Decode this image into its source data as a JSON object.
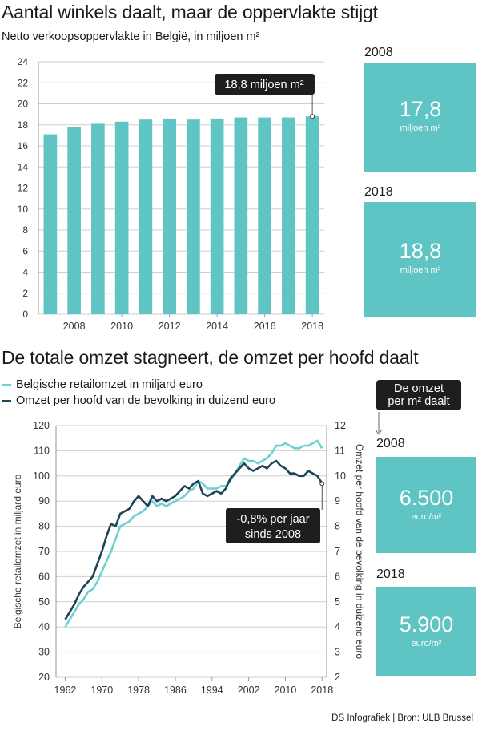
{
  "chart_data": [
    {
      "type": "bar",
      "title": "Aantal winkels daalt, maar de oppervlakte stijgt",
      "subtitle": "Netto verkoopsoppervlakte in België, in miljoen m²",
      "categories": [
        "2007",
        "2008",
        "2009",
        "2010",
        "2011",
        "2012",
        "2013",
        "2014",
        "2015",
        "2016",
        "2017",
        "2018"
      ],
      "values": [
        17.1,
        17.8,
        18.1,
        18.3,
        18.5,
        18.6,
        18.5,
        18.6,
        18.7,
        18.7,
        18.7,
        18.8
      ],
      "ylim": [
        0,
        24
      ],
      "yticks": [
        0,
        2,
        4,
        6,
        8,
        10,
        12,
        14,
        16,
        18,
        20,
        22,
        24
      ],
      "xtick_labels": [
        "2008",
        "2010",
        "2012",
        "2014",
        "2016",
        "2018"
      ],
      "annotation": "18,8 miljoen m²",
      "grid": true,
      "bar_color": "#5ec4c4"
    },
    {
      "type": "line",
      "title": "De totale omzet stagneert, de omzet per hoofd daalt",
      "ylabel": "Belgische retailomzet in miljard euro",
      "y2label": "Omzet per hoofd van de bevolking in duizend euro",
      "ylim": [
        20,
        120
      ],
      "y2lim": [
        2,
        12
      ],
      "xlim": [
        1960,
        2019
      ],
      "yticks": [
        20,
        30,
        40,
        50,
        60,
        70,
        80,
        90,
        100,
        110,
        120
      ],
      "y2ticks": [
        2,
        3,
        4,
        5,
        6,
        7,
        8,
        9,
        10,
        11,
        12
      ],
      "xtick_labels": [
        "1962",
        "1970",
        "1978",
        "1986",
        "1994",
        "2002",
        "2010",
        "2018"
      ],
      "annotation": [
        "-0,8% per jaar",
        "sinds 2008"
      ],
      "grid": true,
      "series": [
        {
          "name": "Belgische retailomzet in miljard euro",
          "axis": "left",
          "color": "#6fd0d0",
          "x": [
            1962,
            1963,
            1964,
            1965,
            1966,
            1967,
            1968,
            1969,
            1970,
            1971,
            1972,
            1973,
            1974,
            1975,
            1976,
            1977,
            1978,
            1979,
            1980,
            1981,
            1982,
            1983,
            1984,
            1985,
            1986,
            1987,
            1988,
            1989,
            1990,
            1991,
            1992,
            1993,
            1994,
            1995,
            1996,
            1997,
            1998,
            1999,
            2000,
            2001,
            2002,
            2003,
            2004,
            2005,
            2006,
            2007,
            2008,
            2009,
            2010,
            2011,
            2012,
            2013,
            2014,
            2015,
            2016,
            2017,
            2018
          ],
          "values": [
            40,
            43,
            46,
            49,
            51,
            54,
            55,
            58,
            62,
            66,
            70,
            75,
            80,
            81,
            82,
            84,
            85,
            86,
            88,
            90,
            88,
            89,
            88,
            89,
            90,
            91,
            92,
            94,
            95,
            98,
            97,
            95,
            95,
            95,
            96,
            96,
            98,
            101,
            104,
            107,
            106,
            106,
            105,
            106,
            107,
            109,
            112,
            112,
            113,
            112,
            111,
            111,
            112,
            112,
            113,
            114,
            111
          ]
        },
        {
          "name": "Omzet per hoofd van de bevolking in duizend euro",
          "axis": "right",
          "color": "#1f4456",
          "x": [
            1962,
            1963,
            1964,
            1965,
            1966,
            1967,
            1968,
            1969,
            1970,
            1971,
            1972,
            1973,
            1974,
            1975,
            1976,
            1977,
            1978,
            1979,
            1980,
            1981,
            1982,
            1983,
            1984,
            1985,
            1986,
            1987,
            1988,
            1989,
            1990,
            1991,
            1992,
            1993,
            1994,
            1995,
            1996,
            1997,
            1998,
            1999,
            2000,
            2001,
            2002,
            2003,
            2004,
            2005,
            2006,
            2007,
            2008,
            2009,
            2010,
            2011,
            2012,
            2013,
            2014,
            2015,
            2016,
            2017,
            2018
          ],
          "values": [
            4.3,
            4.6,
            4.9,
            5.3,
            5.6,
            5.8,
            6.0,
            6.5,
            7.0,
            7.6,
            8.1,
            8.0,
            8.5,
            8.6,
            8.7,
            9.0,
            9.2,
            9.0,
            8.8,
            9.2,
            9.0,
            9.1,
            9.0,
            9.1,
            9.2,
            9.4,
            9.6,
            9.5,
            9.7,
            9.8,
            9.3,
            9.2,
            9.3,
            9.4,
            9.3,
            9.5,
            9.9,
            10.1,
            10.3,
            10.5,
            10.3,
            10.2,
            10.3,
            10.4,
            10.3,
            10.5,
            10.6,
            10.4,
            10.3,
            10.1,
            10.1,
            10.0,
            10.0,
            10.2,
            10.1,
            10.0,
            9.7
          ]
        }
      ]
    }
  ],
  "side_panels": {
    "top": [
      {
        "year": "2008",
        "value": "17,8",
        "unit": "miljoen m²"
      },
      {
        "year": "2018",
        "value": "18,8",
        "unit": "miljoen m²"
      }
    ],
    "callout": [
      "De omzet",
      "per m² daalt"
    ],
    "bottom": [
      {
        "year": "2008",
        "value": "6.500",
        "unit": "euro/m²"
      },
      {
        "year": "2018",
        "value": "5.900",
        "unit": "euro/m²"
      }
    ]
  },
  "colors": {
    "teal": "#5ec4c4",
    "dark": "#1f4456",
    "callout_bg": "#1e1e1e",
    "grid": "#d0d0d0"
  },
  "source": "DS Infografiek | Bron: ULB Brussel"
}
